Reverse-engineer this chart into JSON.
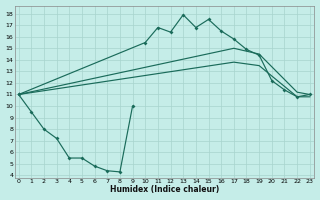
{
  "xlabel": "Humidex (Indice chaleur)",
  "bg_color": "#c5ede8",
  "grid_color": "#a8d4ce",
  "line_color": "#1a6b5a",
  "xlim": [
    -0.3,
    23.3
  ],
  "ylim": [
    3.8,
    18.7
  ],
  "xticks": [
    0,
    1,
    2,
    3,
    4,
    5,
    6,
    7,
    8,
    9,
    10,
    11,
    12,
    13,
    14,
    15,
    16,
    17,
    18,
    19,
    20,
    21,
    22,
    23
  ],
  "yticks": [
    4,
    5,
    6,
    7,
    8,
    9,
    10,
    11,
    12,
    13,
    14,
    15,
    16,
    17,
    18
  ],
  "curve_top_x": [
    0,
    10,
    11,
    12,
    13,
    14,
    15,
    16,
    17,
    18,
    19,
    20,
    21,
    22,
    23
  ],
  "curve_top_y": [
    11.0,
    15.5,
    16.8,
    16.4,
    17.9,
    16.8,
    17.5,
    16.5,
    15.8,
    14.9,
    14.4,
    12.2,
    11.4,
    10.8,
    11.0
  ],
  "curve_bot_x": [
    0,
    1,
    2,
    3,
    4,
    5,
    6,
    7,
    8,
    9
  ],
  "curve_bot_y": [
    11.0,
    9.5,
    8.0,
    7.2,
    5.5,
    5.5,
    4.8,
    4.4,
    4.3,
    10.0
  ],
  "diag_upper_x": [
    0,
    17,
    19,
    22,
    23
  ],
  "diag_upper_y": [
    11.0,
    15.0,
    14.5,
    11.2,
    11.0
  ],
  "diag_lower_x": [
    0,
    17,
    19,
    22,
    23
  ],
  "diag_lower_y": [
    11.0,
    13.8,
    13.5,
    10.8,
    10.8
  ]
}
